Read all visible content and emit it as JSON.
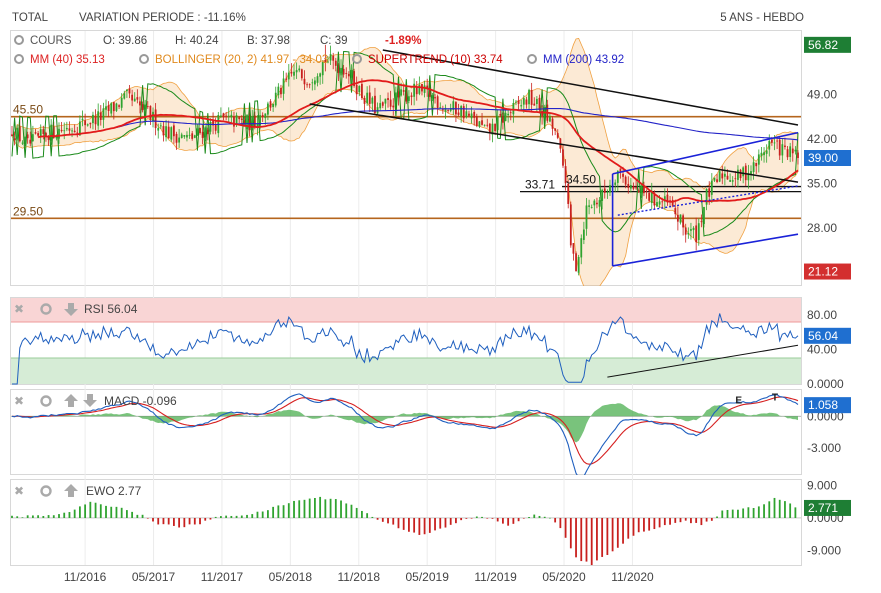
{
  "header": {
    "symbol": "TOTAL",
    "variation_label": "VARIATION PERIODE : -11.16%",
    "period": "5 ANS - HEBDO"
  },
  "colors": {
    "price_up": "#2fa32f",
    "price_down": "#c8201e",
    "ma40": "#e21b1b",
    "ma200": "#2424c8",
    "bollinger": "#f0a040",
    "supertrend": "#1a8a1a",
    "rsi_line": "#1f5fbf",
    "macd_line": "#1f5fbf",
    "macd_signal": "#d62020",
    "ewo_pos": "#2fa32f",
    "ewo_neg": "#c8201e",
    "support_line": "#b5651d",
    "channel_blue": "#1a22d8"
  },
  "legend": {
    "cours": {
      "label": "COURS",
      "o": "O: 39.86",
      "h": "H: 40.24",
      "b": "B: 37.98",
      "c": "C: 39",
      "change": "-1.89%"
    },
    "ma40": "MM (40) 35.13",
    "bollinger": "BOLLINGER (20, 2) 41.97 - 34.03",
    "supertrend": "SUPERTREND (10) 33.74",
    "ma200": "MM (200) 43.92"
  },
  "chart_data": [
    {
      "type": "candlestick",
      "panel": "price",
      "ylim": [
        19,
        59
      ],
      "yticks": [
        "49.00",
        "42.00",
        "35.00",
        "28.00"
      ],
      "badges": [
        {
          "value": "56.82",
          "color": "#1e7e34"
        },
        {
          "value": "39.00",
          "color": "#1f6fd0"
        },
        {
          "value": "21.12",
          "color": "#d32f2f"
        }
      ],
      "levels": [
        {
          "label": "45.50",
          "value": 45.5
        },
        {
          "label": "29.50",
          "value": 29.5
        },
        {
          "label": "33.71",
          "value": 33.71
        },
        {
          "label": "34.50",
          "value": 34.5
        }
      ],
      "close_anchors": [
        [
          0,
          43.5
        ],
        [
          6,
          41.0
        ],
        [
          14,
          43.0
        ],
        [
          24,
          44.0
        ],
        [
          34,
          45.5
        ],
        [
          44,
          48.5
        ],
        [
          52,
          46.0
        ],
        [
          60,
          43.0
        ],
        [
          68,
          42.0
        ],
        [
          80,
          45.0
        ],
        [
          92,
          44.5
        ],
        [
          100,
          48.0
        ],
        [
          108,
          52.5
        ],
        [
          114,
          51.5
        ],
        [
          120,
          54.5
        ],
        [
          128,
          53.0
        ],
        [
          134,
          49.0
        ],
        [
          140,
          46.5
        ],
        [
          148,
          48.5
        ],
        [
          154,
          49.5
        ],
        [
          160,
          49.0
        ],
        [
          166,
          47.0
        ],
        [
          172,
          46.5
        ],
        [
          178,
          44.5
        ],
        [
          182,
          43.0
        ],
        [
          190,
          46.0
        ],
        [
          198,
          48.5
        ],
        [
          204,
          46.0
        ],
        [
          208,
          43.0
        ],
        [
          212,
          36.0
        ],
        [
          214,
          25.0
        ],
        [
          216,
          22.0
        ],
        [
          220,
          31.0
        ],
        [
          226,
          33.0
        ],
        [
          232,
          37.0
        ],
        [
          238,
          34.0
        ],
        [
          246,
          32.5
        ],
        [
          252,
          31.5
        ],
        [
          258,
          27.5
        ],
        [
          262,
          27.0
        ],
        [
          266,
          33.0
        ],
        [
          272,
          36.5
        ],
        [
          278,
          36.0
        ],
        [
          284,
          37.5
        ],
        [
          290,
          41.5
        ],
        [
          296,
          40.0
        ],
        [
          301,
          39.0
        ]
      ]
    },
    {
      "type": "line",
      "panel": "rsi",
      "name": "RSI",
      "label": "RSI 56.04",
      "ylim": [
        0,
        100
      ],
      "yticks": [
        "80.00",
        "40.00",
        "0.0000"
      ],
      "badge": "56.04",
      "last": 56.04
    },
    {
      "type": "line",
      "panel": "macd",
      "name": "MACD",
      "label": "MACD -0.096",
      "ylim": [
        -5.5,
        2.5
      ],
      "yticks": [
        "0.0000",
        "-3.000"
      ],
      "badge": "1.058",
      "annotations": [
        "E",
        "T"
      ]
    },
    {
      "type": "bar",
      "panel": "ewo",
      "name": "EWO",
      "label": "EWO 2.77",
      "ylim": [
        -13,
        10.5
      ],
      "yticks": [
        "9.000",
        "0.0000",
        "-9.000"
      ],
      "badge": "2.771",
      "anchors": [
        [
          0,
          0.4
        ],
        [
          12,
          0.6
        ],
        [
          20,
          1.2
        ],
        [
          30,
          4.2
        ],
        [
          40,
          3.2
        ],
        [
          50,
          0.6
        ],
        [
          56,
          -1.5
        ],
        [
          64,
          -2.6
        ],
        [
          72,
          -1.5
        ],
        [
          80,
          0.6
        ],
        [
          92,
          1.0
        ],
        [
          100,
          2.8
        ],
        [
          110,
          5.0
        ],
        [
          118,
          5.6
        ],
        [
          126,
          5.0
        ],
        [
          134,
          2.0
        ],
        [
          140,
          -0.4
        ],
        [
          148,
          -2.6
        ],
        [
          156,
          -4.6
        ],
        [
          164,
          -3.2
        ],
        [
          172,
          -0.8
        ],
        [
          178,
          0.4
        ],
        [
          184,
          -0.4
        ],
        [
          190,
          -2.0
        ],
        [
          196,
          -0.4
        ],
        [
          200,
          0.8
        ],
        [
          206,
          0.3
        ],
        [
          210,
          -3.0
        ],
        [
          216,
          -11.0
        ],
        [
          222,
          -13.0
        ],
        [
          230,
          -9.0
        ],
        [
          240,
          -4.0
        ],
        [
          250,
          -2.0
        ],
        [
          258,
          -1.0
        ],
        [
          264,
          -2.0
        ],
        [
          268,
          -0.5
        ],
        [
          272,
          1.8
        ],
        [
          280,
          2.8
        ],
        [
          286,
          3.0
        ],
        [
          292,
          5.8
        ],
        [
          298,
          4.0
        ],
        [
          301,
          2.8
        ]
      ]
    }
  ],
  "x_axis": {
    "labels": [
      "11/2016",
      "05/2017",
      "11/2017",
      "05/2018",
      "11/2018",
      "05/2019",
      "11/2019",
      "05/2020",
      "11/2020"
    ]
  },
  "tool_icons": {
    "remove": "remove-icon",
    "settings": "gear-icon",
    "move_down": "arrow-down-icon",
    "move_up": "arrow-up-icon"
  }
}
